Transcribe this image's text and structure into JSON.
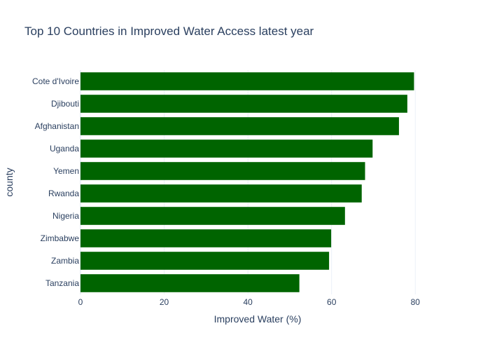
{
  "chart_data": {
    "type": "bar",
    "orientation": "horizontal",
    "title": "Top 10 Countries in Improved Water Access latest year",
    "xlabel": "Improved Water (%)",
    "ylabel": "county",
    "categories": [
      "Cote d'Ivoire",
      "Djibouti",
      "Afghanistan",
      "Uganda",
      "Yemen",
      "Rwanda",
      "Nigeria",
      "Zimbabwe",
      "Zambia",
      "Tanzania"
    ],
    "values": [
      79.7,
      78.1,
      76.1,
      69.8,
      68.0,
      67.2,
      63.2,
      59.9,
      59.4,
      52.3
    ],
    "xlim": [
      0,
      92
    ],
    "xticks": [
      0,
      20,
      40,
      60,
      80
    ],
    "grid": true,
    "bar_color": "#006400",
    "legend": "none"
  }
}
